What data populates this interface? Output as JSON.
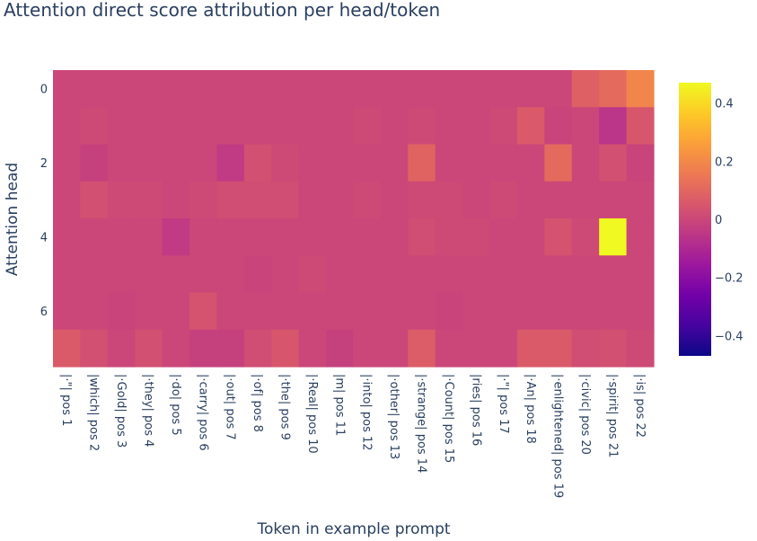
{
  "chart_data": {
    "type": "heatmap",
    "title": "Attention direct score attribution per head/token",
    "xlabel": "Token in example prompt",
    "ylabel": "Attention head",
    "x": [
      "|·\"| pos 1",
      "|which| pos 2",
      "|·Gold| pos 3",
      "|·they| pos 4",
      "|·do| pos 5",
      "|·carry| pos 6",
      "|·out| pos 7",
      "|·of| pos 8",
      "|·the| pos 9",
      "|·Real| pos 10",
      "|m| pos 11",
      "|·into| pos 12",
      "|·other| pos 13",
      "|·strange| pos 14",
      "|·Count| pos 15",
      "|ries| pos 16",
      "|·\"| pos 17",
      "|·An| pos 18",
      "|·enlightened| pos 19",
      "|·civic| pos 20",
      "|·spirit| pos 21",
      "|·is| pos 22"
    ],
    "y": [
      0,
      1,
      2,
      3,
      4,
      5,
      6,
      7
    ],
    "ytick_labels": [
      "0",
      "2",
      "4",
      "6"
    ],
    "zlim": [
      -0.47,
      0.47
    ],
    "colorbar_ticks": [
      "0.4",
      "0.2",
      "0",
      "−0.2",
      "−0.4"
    ],
    "colorscale": [
      "#0d0887",
      "#46039f",
      "#7201a8",
      "#9c179e",
      "#bd3786",
      "#d8576b",
      "#ed7953",
      "#fb9f3a",
      "#fdca26",
      "#f0f921"
    ],
    "z": [
      [
        0.0,
        0.0,
        0.0,
        0.0,
        0.0,
        0.0,
        0.0,
        0.0,
        0.0,
        0.0,
        0.0,
        0.0,
        0.0,
        0.0,
        0.0,
        0.0,
        0.0,
        0.0,
        0.0,
        0.08,
        0.11,
        0.19
      ],
      [
        0.0,
        0.01,
        0.0,
        0.0,
        0.0,
        0.0,
        0.0,
        0.0,
        0.0,
        0.0,
        0.0,
        0.01,
        0.0,
        0.01,
        0.0,
        0.0,
        0.01,
        0.06,
        -0.01,
        0.0,
        -0.06,
        0.05
      ],
      [
        0.0,
        -0.02,
        0.0,
        0.0,
        0.0,
        0.0,
        -0.04,
        0.03,
        0.01,
        0.0,
        0.0,
        0.0,
        0.0,
        0.09,
        0.0,
        0.0,
        0.0,
        0.0,
        0.11,
        0.0,
        0.03,
        -0.01
      ],
      [
        0.0,
        0.03,
        0.01,
        0.01,
        0.0,
        0.01,
        0.02,
        0.02,
        0.02,
        0.0,
        0.0,
        0.01,
        0.0,
        0.01,
        0.01,
        0.0,
        0.01,
        0.0,
        0.0,
        0.0,
        0.0,
        0.0
      ],
      [
        0.0,
        0.0,
        0.0,
        0.0,
        -0.04,
        0.0,
        0.0,
        0.0,
        0.0,
        0.0,
        0.0,
        0.0,
        0.0,
        0.02,
        0.01,
        0.01,
        0.0,
        0.0,
        0.04,
        0.01,
        0.47,
        0.0
      ],
      [
        0.0,
        0.0,
        0.0,
        0.0,
        0.0,
        0.0,
        0.0,
        -0.01,
        0.0,
        0.01,
        0.0,
        0.0,
        0.0,
        0.0,
        0.0,
        0.0,
        0.0,
        0.0,
        0.0,
        0.0,
        0.0,
        0.0
      ],
      [
        0.0,
        0.0,
        -0.01,
        0.0,
        0.0,
        0.04,
        0.0,
        0.0,
        0.0,
        0.0,
        0.0,
        0.0,
        0.0,
        0.0,
        -0.01,
        0.0,
        0.0,
        0.0,
        0.0,
        0.0,
        0.0,
        0.0
      ],
      [
        0.06,
        0.03,
        0.0,
        0.03,
        0.0,
        -0.02,
        -0.02,
        0.02,
        0.05,
        0.0,
        -0.02,
        0.0,
        0.0,
        0.07,
        0.0,
        0.0,
        0.0,
        0.06,
        0.06,
        0.02,
        0.03,
        0.01
      ]
    ]
  }
}
